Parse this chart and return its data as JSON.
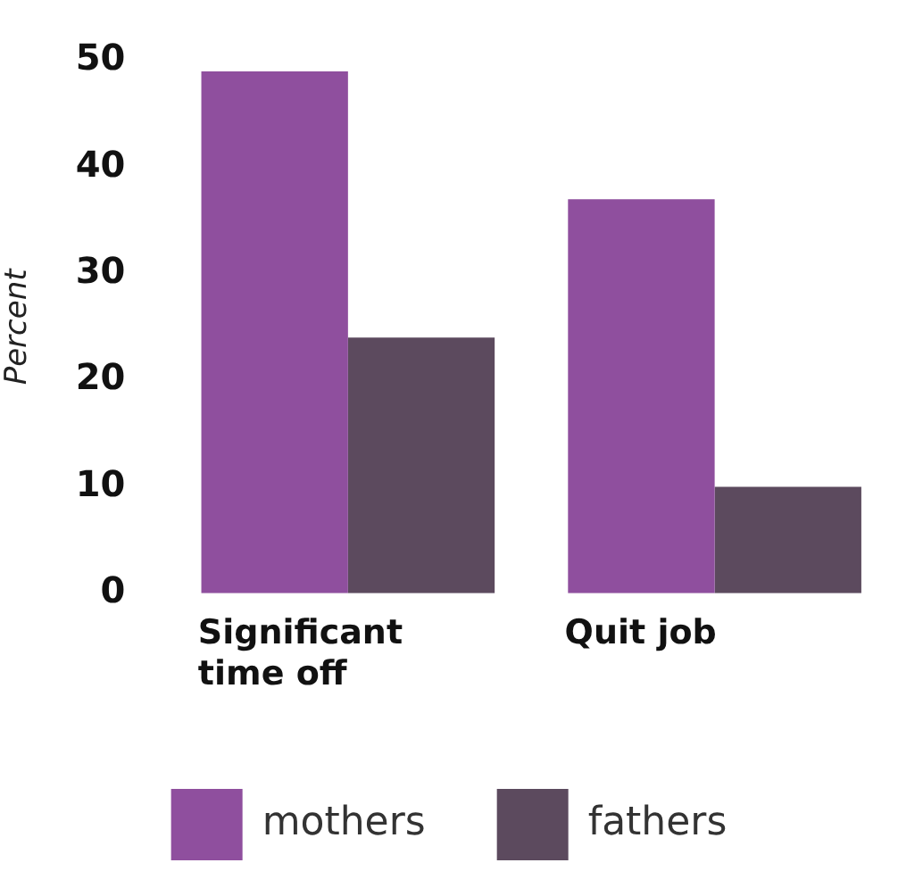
{
  "chart_data": {
    "type": "bar",
    "ylabel": "Percent",
    "categories": [
      "Significant time off",
      "Quit job"
    ],
    "series": [
      {
        "name": "mothers",
        "color": "#8f4f9e",
        "values": [
          49,
          37
        ]
      },
      {
        "name": "fathers",
        "color": "#5c4a5e",
        "values": [
          24,
          10
        ]
      }
    ],
    "ylim": [
      0,
      50
    ],
    "yticks": [
      0,
      10,
      20,
      30,
      40,
      50
    ],
    "grid": false,
    "legend": "bottom"
  }
}
